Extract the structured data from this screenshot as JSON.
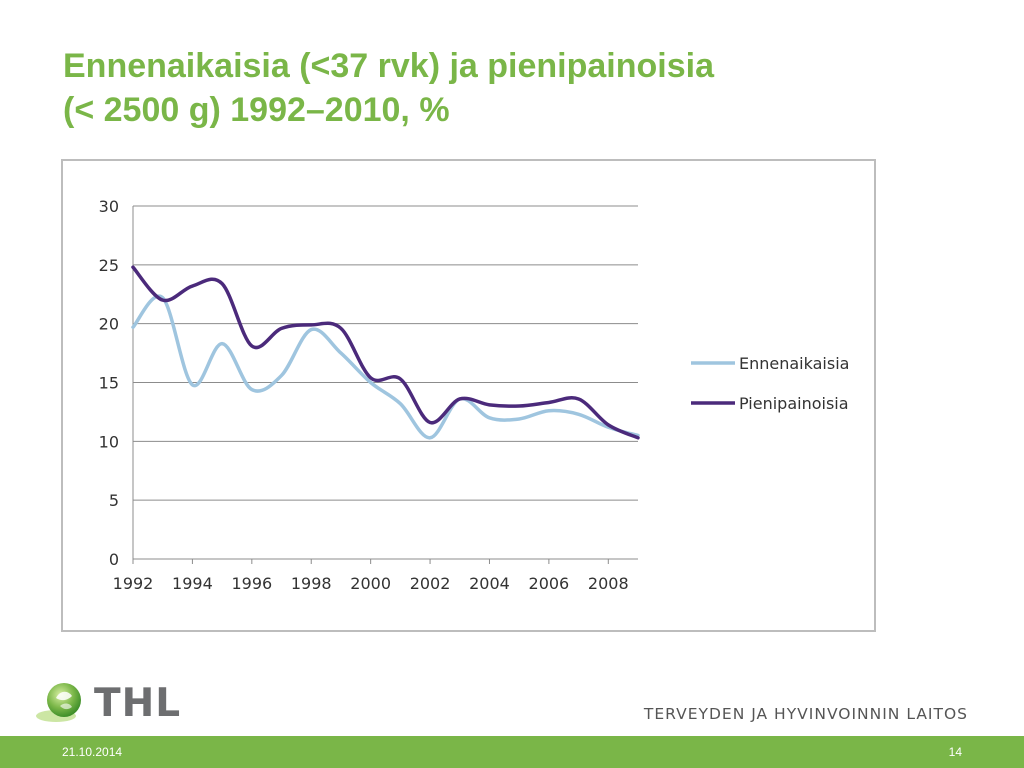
{
  "slide": {
    "title_line1": "Ennenaikaisia (<37 rvk) ja pienipainoisia",
    "title_line2": "(< 2500 g) 1992–2010, %"
  },
  "colors": {
    "title": "#7ab648",
    "footer_bar": "#7ab648",
    "series_ennenaikaisia": "#9fc5df",
    "series_pienipainoisia": "#4b2a7b"
  },
  "chart_data": {
    "type": "line",
    "x": [
      1992,
      1993,
      1994,
      1995,
      1996,
      1997,
      1998,
      1999,
      2000,
      2001,
      2002,
      2003,
      2004,
      2005,
      2006,
      2007,
      2008,
      2009
    ],
    "x_tick_labels": [
      "1992",
      "1994",
      "1996",
      "1998",
      "2000",
      "2002",
      "2004",
      "2006",
      "2008"
    ],
    "y_tick_labels": [
      "0",
      "5",
      "10",
      "15",
      "20",
      "25",
      "30"
    ],
    "ylim": [
      0,
      30
    ],
    "grid": true,
    "legend_position": "right",
    "series": [
      {
        "name": "Ennenaikaisia",
        "values": [
          19.7,
          22.2,
          14.8,
          18.3,
          14.4,
          15.6,
          19.5,
          17.5,
          15.0,
          13.2,
          10.3,
          13.6,
          12.0,
          11.9,
          12.6,
          12.3,
          11.2,
          10.5
        ]
      },
      {
        "name": "Pienipainoisia",
        "values": [
          24.8,
          22.0,
          23.2,
          23.4,
          18.1,
          19.6,
          19.9,
          19.6,
          15.4,
          15.3,
          11.6,
          13.6,
          13.1,
          13.0,
          13.3,
          13.6,
          11.4,
          10.3
        ]
      }
    ]
  },
  "logo": {
    "text": "THL"
  },
  "organization": "TERVEYDEN JA HYVINVOINNIN LAITOS",
  "footer": {
    "date": "21.10.2014",
    "page": "14"
  }
}
